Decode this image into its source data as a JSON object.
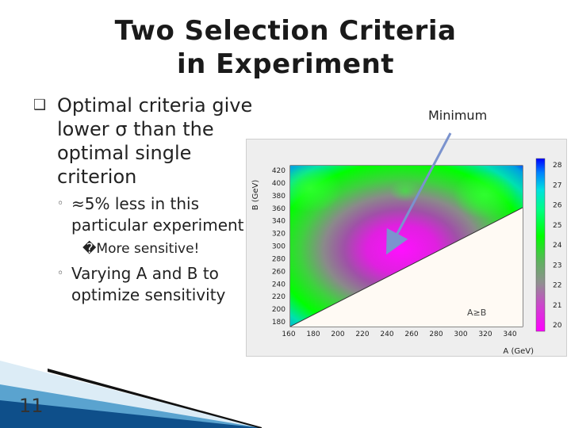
{
  "title": "Two Selection Criteria in Experiment",
  "bullets": [
    {
      "marker": "❑",
      "text": "Optimal criteria give lower σ than the optimal single criterion"
    },
    {
      "marker": "◦",
      "text": "≈5% less in this particular experiment"
    },
    {
      "marker": "",
      "text": "�More sensitive!"
    },
    {
      "marker": "◦",
      "text": "Varying A and B to optimize sensitivity"
    }
  ],
  "plot": {
    "annotation_minimum": "Minimum",
    "region_label": "A≥B",
    "xlabel": "A (GeV)",
    "ylabel": "B (GeV)",
    "x_ticks": [
      "160",
      "180",
      "200",
      "220",
      "240",
      "260",
      "280",
      "300",
      "320",
      "340"
    ],
    "y_ticks": [
      "180",
      "200",
      "220",
      "240",
      "260",
      "280",
      "300",
      "320",
      "340",
      "360",
      "380",
      "400",
      "420"
    ],
    "z_ticks": [
      "20",
      "21",
      "22",
      "23",
      "24",
      "25",
      "26",
      "27",
      "28"
    ]
  },
  "page_number": "11"
}
